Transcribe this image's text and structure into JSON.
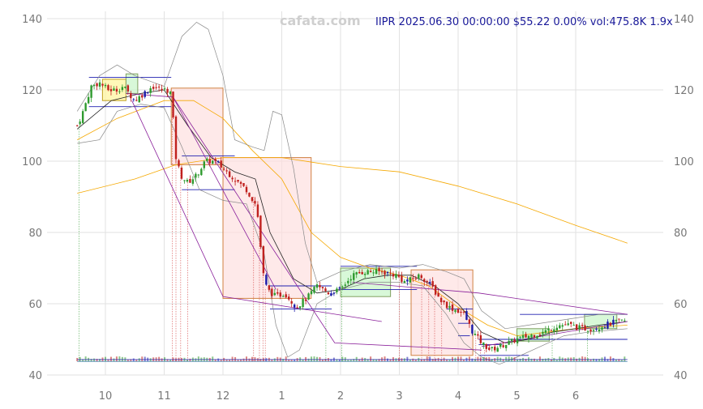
{
  "header": {
    "watermark": "cafata.com",
    "info": "IIPR 2025.06.30 00:00:00 $55.22 0.00% vol:475.8K 1.9x"
  },
  "chart_data": {
    "type": "candlestick",
    "ylim": [
      40,
      140
    ],
    "y_ticks": [
      40,
      60,
      80,
      100,
      120,
      140
    ],
    "grid": true,
    "x_ticks": [
      {
        "label": "10",
        "month_index": 1
      },
      {
        "label": "11",
        "month_index": 2
      },
      {
        "label": "12",
        "month_index": 3
      },
      {
        "label": "1",
        "month_index": 4
      },
      {
        "label": "2",
        "month_index": 5
      },
      {
        "label": "3",
        "month_index": 6
      },
      {
        "label": "4",
        "month_index": 7
      },
      {
        "label": "5",
        "month_index": 8
      },
      {
        "label": "6",
        "month_index": 9
      }
    ],
    "xlim": [
      0.0,
      9.95
    ],
    "close_path": [
      [
        0.52,
        110
      ],
      [
        0.6,
        113
      ],
      [
        0.68,
        117
      ],
      [
        0.76,
        121
      ],
      [
        0.9,
        122
      ],
      [
        1.05,
        120
      ],
      [
        1.2,
        120
      ],
      [
        1.3,
        121
      ],
      [
        1.5,
        117
      ],
      [
        1.65,
        119
      ],
      [
        1.8,
        121
      ],
      [
        1.95,
        120
      ],
      [
        2.05,
        120
      ],
      [
        2.12,
        119
      ],
      [
        2.15,
        112
      ],
      [
        2.2,
        101
      ],
      [
        2.28,
        96
      ],
      [
        2.4,
        94
      ],
      [
        2.55,
        96
      ],
      [
        2.7,
        100
      ],
      [
        2.85,
        100
      ],
      [
        3.0,
        98
      ],
      [
        3.2,
        95
      ],
      [
        3.4,
        92
      ],
      [
        3.55,
        88
      ],
      [
        3.62,
        82
      ],
      [
        3.66,
        70
      ],
      [
        3.75,
        64
      ],
      [
        3.9,
        62
      ],
      [
        4.05,
        63
      ],
      [
        4.25,
        59
      ],
      [
        4.45,
        62
      ],
      [
        4.6,
        65
      ],
      [
        4.8,
        63
      ],
      [
        5.0,
        64
      ],
      [
        5.2,
        68
      ],
      [
        5.4,
        69
      ],
      [
        5.7,
        69
      ],
      [
        5.95,
        68
      ],
      [
        6.1,
        66
      ],
      [
        6.35,
        68
      ],
      [
        6.55,
        65
      ],
      [
        6.7,
        61
      ],
      [
        6.85,
        59
      ],
      [
        7.0,
        58
      ],
      [
        7.1,
        57
      ],
      [
        7.25,
        52
      ],
      [
        7.4,
        49
      ],
      [
        7.55,
        47
      ],
      [
        7.7,
        48
      ],
      [
        7.85,
        49
      ],
      [
        8.0,
        50
      ],
      [
        8.2,
        51
      ],
      [
        8.45,
        52
      ],
      [
        8.7,
        54
      ],
      [
        8.9,
        54
      ],
      [
        9.1,
        53
      ],
      [
        9.3,
        53
      ],
      [
        9.5,
        54
      ],
      [
        9.7,
        55
      ],
      [
        9.88,
        55.22
      ]
    ],
    "series": [
      {
        "color": "#f5a800",
        "width": 0.8,
        "points": [
          [
            0.52,
            91
          ],
          [
            1.5,
            95
          ],
          [
            2.2,
            99
          ],
          [
            3.0,
            101
          ],
          [
            4.0,
            101
          ],
          [
            5.0,
            98.5
          ],
          [
            6.0,
            97
          ],
          [
            7.0,
            93
          ],
          [
            8.0,
            88
          ],
          [
            9.0,
            82
          ],
          [
            9.88,
            77
          ]
        ]
      },
      {
        "color": "#f5a800",
        "width": 0.8,
        "points": [
          [
            0.52,
            106
          ],
          [
            1.2,
            112
          ],
          [
            2.0,
            117
          ],
          [
            2.5,
            117
          ],
          [
            3.0,
            112
          ],
          [
            3.5,
            103
          ],
          [
            4.0,
            95
          ],
          [
            4.5,
            80
          ],
          [
            5.0,
            73
          ],
          [
            5.5,
            70
          ],
          [
            6.0,
            68
          ],
          [
            6.5,
            65
          ],
          [
            7.0,
            59
          ],
          [
            7.5,
            54
          ],
          [
            8.0,
            51
          ],
          [
            8.5,
            52
          ],
          [
            9.0,
            53
          ],
          [
            9.88,
            54
          ]
        ]
      },
      {
        "color": "#222222",
        "width": 0.8,
        "points": [
          [
            0.52,
            109
          ],
          [
            1.1,
            117
          ],
          [
            1.6,
            119
          ],
          [
            2.0,
            120
          ],
          [
            2.4,
            110
          ],
          [
            2.8,
            101
          ],
          [
            3.2,
            97
          ],
          [
            3.55,
            95
          ],
          [
            3.8,
            80
          ],
          [
            4.2,
            67
          ],
          [
            4.6,
            63
          ],
          [
            5.0,
            64
          ],
          [
            5.4,
            67
          ],
          [
            5.8,
            68
          ],
          [
            6.2,
            68
          ],
          [
            6.6,
            65
          ],
          [
            7.0,
            60
          ],
          [
            7.4,
            52
          ],
          [
            7.8,
            49
          ],
          [
            8.2,
            50
          ],
          [
            8.6,
            52
          ],
          [
            9.0,
            53
          ],
          [
            9.4,
            54
          ],
          [
            9.88,
            55
          ]
        ]
      },
      {
        "color": "#888888",
        "width": 0.7,
        "points": [
          [
            0.52,
            114
          ],
          [
            0.9,
            124
          ],
          [
            1.2,
            127
          ],
          [
            1.5,
            124
          ],
          [
            2.0,
            121
          ],
          [
            2.3,
            135
          ],
          [
            2.55,
            139
          ],
          [
            2.75,
            137
          ],
          [
            3.0,
            124
          ],
          [
            3.2,
            106
          ],
          [
            3.5,
            104
          ],
          [
            3.7,
            103
          ],
          [
            3.85,
            114
          ],
          [
            4.0,
            113
          ],
          [
            4.2,
            98
          ],
          [
            4.4,
            77
          ],
          [
            4.6,
            66
          ],
          [
            5.0,
            69
          ],
          [
            5.5,
            71
          ],
          [
            6.0,
            70
          ],
          [
            6.4,
            71
          ],
          [
            6.8,
            69
          ],
          [
            7.1,
            67
          ],
          [
            7.4,
            58
          ],
          [
            7.8,
            53
          ],
          [
            8.2,
            54
          ],
          [
            8.6,
            55
          ],
          [
            9.0,
            56
          ],
          [
            9.4,
            57
          ],
          [
            9.88,
            57
          ]
        ]
      },
      {
        "color": "#888888",
        "width": 0.7,
        "points": [
          [
            0.52,
            105
          ],
          [
            0.9,
            106
          ],
          [
            1.2,
            114
          ],
          [
            1.6,
            116
          ],
          [
            2.0,
            115
          ],
          [
            2.3,
            104
          ],
          [
            2.6,
            92
          ],
          [
            3.0,
            89
          ],
          [
            3.4,
            88
          ],
          [
            3.7,
            74
          ],
          [
            3.9,
            54
          ],
          [
            4.1,
            45
          ],
          [
            4.3,
            47
          ],
          [
            4.6,
            60
          ],
          [
            5.0,
            64
          ],
          [
            5.5,
            66
          ],
          [
            6.0,
            66
          ],
          [
            6.4,
            65
          ],
          [
            6.8,
            57
          ],
          [
            7.1,
            49
          ],
          [
            7.4,
            45
          ],
          [
            7.7,
            43
          ],
          [
            8.0,
            45
          ],
          [
            8.4,
            48
          ],
          [
            8.8,
            51
          ],
          [
            9.2,
            52
          ],
          [
            9.88,
            53
          ]
        ]
      },
      {
        "color": "#8a1f9a",
        "width": 0.8,
        "points": [
          [
            1.35,
            119
          ],
          [
            2.15,
            118
          ],
          [
            4.9,
            49
          ],
          [
            7.4,
            47
          ]
        ]
      },
      {
        "color": "#8a1f9a",
        "width": 0.8,
        "points": [
          [
            1.45,
            117
          ],
          [
            3.0,
            62
          ],
          [
            5.7,
            55
          ]
        ]
      },
      {
        "color": "#8a1f9a",
        "width": 0.8,
        "points": [
          [
            5.2,
            66
          ],
          [
            7.35,
            63
          ],
          [
            9.88,
            57
          ]
        ]
      },
      {
        "color": "#8a1f9a",
        "width": 0.8,
        "points": [
          [
            7.4,
            48
          ],
          [
            9.88,
            55
          ]
        ]
      },
      {
        "color": "#8a1f9a",
        "width": 0.8,
        "points": [
          [
            2.15,
            118
          ],
          [
            3.9,
            64
          ]
        ]
      }
    ],
    "boxes": [
      {
        "x0": 2.12,
        "x1": 3.0,
        "y0": 99,
        "y1": 120.5,
        "fill": "#fde0e0",
        "stroke": "#d08040"
      },
      {
        "x0": 3.0,
        "x1": 4.5,
        "y0": 61.5,
        "y1": 101,
        "fill": "#fde0e0",
        "stroke": "#d08040"
      },
      {
        "x0": 6.2,
        "x1": 7.25,
        "y0": 45.5,
        "y1": 69.5,
        "fill": "#fde0e0",
        "stroke": "#d08040"
      },
      {
        "x0": 5.0,
        "x1": 5.85,
        "y0": 62,
        "y1": 70,
        "fill": "#c8f5c8",
        "stroke": "#80a060"
      },
      {
        "x0": 8.0,
        "x1": 8.55,
        "y0": 49.5,
        "y1": 53,
        "fill": "#c8f5c8",
        "stroke": "#80a060"
      },
      {
        "x0": 9.15,
        "x1": 9.7,
        "y0": 53,
        "y1": 57,
        "fill": "#c8f5c8",
        "stroke": "#80a060"
      },
      {
        "x0": 0.95,
        "x1": 1.35,
        "y0": 117,
        "y1": 123,
        "fill": "#fff59a",
        "stroke": "#c0a020"
      },
      {
        "x0": 1.35,
        "x1": 1.55,
        "y0": 119,
        "y1": 124.5,
        "fill": "#c8f5c8",
        "stroke": "#80a060"
      }
    ],
    "hlines": [
      {
        "x0": 0.72,
        "x1": 2.12,
        "y": 123.5
      },
      {
        "x0": 0.72,
        "x1": 2.12,
        "y": 115.3
      },
      {
        "x0": 2.3,
        "x1": 3.2,
        "y": 101.5
      },
      {
        "x0": 2.3,
        "x1": 3.2,
        "y": 92
      },
      {
        "x0": 3.8,
        "x1": 4.85,
        "y": 65
      },
      {
        "x0": 3.8,
        "x1": 4.85,
        "y": 58.5
      },
      {
        "x0": 5.0,
        "x1": 6.3,
        "y": 70.5
      },
      {
        "x0": 5.0,
        "x1": 6.3,
        "y": 64
      },
      {
        "x0": 6.8,
        "x1": 7.25,
        "y": 58.5
      },
      {
        "x0": 7.0,
        "x1": 7.2,
        "y": 54.5
      },
      {
        "x0": 7.0,
        "x1": 7.2,
        "y": 51
      },
      {
        "x0": 7.35,
        "x1": 9.88,
        "y": 50
      },
      {
        "x0": 8.05,
        "x1": 9.88,
        "y": 57
      },
      {
        "x0": 7.35,
        "x1": 8.2,
        "y": 45.5
      },
      {
        "x0": 7.35,
        "x1": 7.75,
        "y": 48.5
      }
    ],
    "vlines": [
      {
        "x": 0.55,
        "y0": 44,
        "y1": 110,
        "color": "#2e9a2e"
      },
      {
        "x": 2.14,
        "y0": 44,
        "y1": 118,
        "color": "#d03030"
      },
      {
        "x": 2.2,
        "y0": 44,
        "y1": 101,
        "color": "#d03030"
      },
      {
        "x": 2.28,
        "y0": 44,
        "y1": 98,
        "color": "#d03030"
      },
      {
        "x": 2.4,
        "y0": 44,
        "y1": 95,
        "color": "#d03030"
      },
      {
        "x": 3.52,
        "y0": 44,
        "y1": 90,
        "color": "#d03030"
      },
      {
        "x": 3.62,
        "y0": 44,
        "y1": 82,
        "color": "#d03030"
      },
      {
        "x": 3.68,
        "y0": 44,
        "y1": 69,
        "color": "#d03030"
      },
      {
        "x": 3.72,
        "y0": 44,
        "y1": 64,
        "color": "#d03030"
      },
      {
        "x": 4.75,
        "y0": 44,
        "y1": 64,
        "color": "#2e9a2e"
      },
      {
        "x": 5.02,
        "y0": 44,
        "y1": 66,
        "color": "#2e9a2e"
      },
      {
        "x": 6.0,
        "y0": 44,
        "y1": 68,
        "color": "#d03030"
      },
      {
        "x": 6.38,
        "y0": 44,
        "y1": 67,
        "color": "#d03030"
      },
      {
        "x": 6.5,
        "y0": 44,
        "y1": 66,
        "color": "#d03030"
      },
      {
        "x": 6.6,
        "y0": 44,
        "y1": 63,
        "color": "#d03030"
      },
      {
        "x": 6.72,
        "y0": 44,
        "y1": 61,
        "color": "#d03030"
      },
      {
        "x": 7.3,
        "y0": 44,
        "y1": 51,
        "color": "#d03030"
      },
      {
        "x": 7.38,
        "y0": 44,
        "y1": 48,
        "color": "#d03030"
      },
      {
        "x": 7.45,
        "y0": 44,
        "y1": 47,
        "color": "#d03030"
      },
      {
        "x": 8.6,
        "y0": 44,
        "y1": 54,
        "color": "#2e9a2e"
      },
      {
        "x": 9.2,
        "y0": 44,
        "y1": 54,
        "color": "#2e9a2e"
      }
    ],
    "colors": {
      "up": "#2e9a2e",
      "down": "#c0201e",
      "neutral": "#1a1aaa",
      "grid": "#e2e2e2",
      "volume": "#7aa4c8"
    }
  }
}
